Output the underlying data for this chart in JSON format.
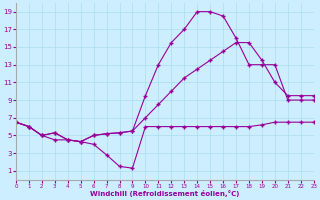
{
  "xlabel": "Windchill (Refroidissement éolien,°C)",
  "ylabel": "",
  "bg_color": "#cceeff",
  "line_color": "#990099",
  "grid_color": "#aaddee",
  "xlim": [
    0,
    23
  ],
  "ylim": [
    0,
    20
  ],
  "xticks": [
    0,
    1,
    2,
    3,
    4,
    5,
    6,
    7,
    8,
    9,
    10,
    11,
    12,
    13,
    14,
    15,
    16,
    17,
    18,
    19,
    20,
    21,
    22,
    23
  ],
  "yticks": [
    1,
    3,
    5,
    7,
    9,
    11,
    13,
    15,
    17,
    19
  ],
  "line1_x": [
    0,
    1,
    2,
    3,
    4,
    5,
    6,
    7,
    8,
    9,
    10,
    11,
    12,
    13,
    14,
    15,
    16,
    17,
    18,
    19,
    20,
    21,
    22,
    23
  ],
  "line1_y": [
    6.5,
    6.0,
    5.0,
    5.3,
    4.5,
    4.3,
    5.0,
    5.2,
    5.3,
    5.5,
    9.5,
    13.0,
    15.5,
    17.0,
    19.0,
    19.0,
    18.5,
    16.0,
    13.0,
    13.0,
    13.0,
    9.0,
    9.0,
    9.0
  ],
  "line2_x": [
    0,
    1,
    2,
    3,
    4,
    5,
    6,
    7,
    8,
    9,
    10,
    11,
    12,
    13,
    14,
    15,
    16,
    17,
    18,
    19,
    20,
    21,
    22,
    23
  ],
  "line2_y": [
    6.5,
    6.0,
    5.0,
    5.3,
    4.5,
    4.3,
    5.0,
    5.2,
    5.3,
    5.5,
    7.0,
    8.5,
    10.0,
    11.5,
    12.5,
    13.5,
    14.5,
    15.5,
    15.5,
    13.5,
    11.0,
    9.5,
    9.5,
    9.5
  ],
  "line3_x": [
    0,
    1,
    2,
    3,
    4,
    5,
    6,
    7,
    8,
    9,
    10,
    11,
    12,
    13,
    14,
    15,
    16,
    17,
    18,
    19,
    20,
    21,
    22,
    23
  ],
  "line3_y": [
    6.5,
    6.0,
    5.0,
    4.5,
    4.5,
    4.3,
    4.0,
    2.8,
    1.5,
    1.3,
    6.0,
    6.0,
    6.0,
    6.0,
    6.0,
    6.0,
    6.0,
    6.0,
    6.0,
    6.2,
    6.5,
    6.5,
    6.5,
    6.5
  ],
  "marker": "+",
  "markersize": 3,
  "linewidth": 0.8
}
